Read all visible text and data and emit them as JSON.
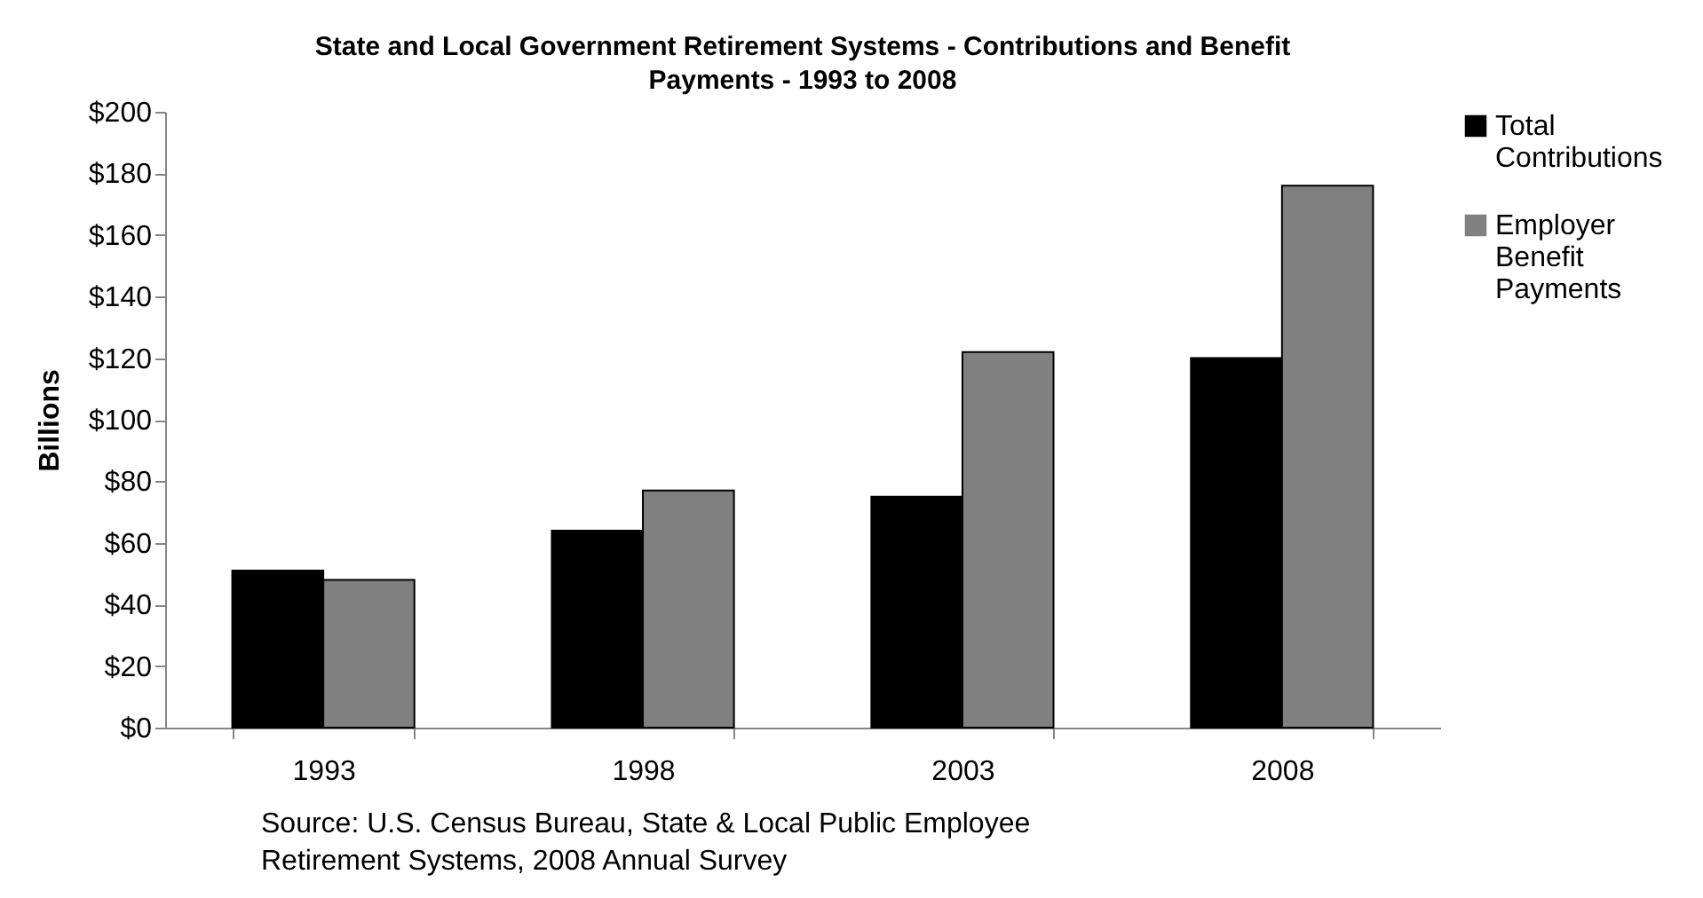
{
  "chart_data": {
    "type": "bar",
    "title": "State and Local Government Retirement Systems - Contributions and Benefit Payments - 1993 to 2008",
    "ylabel": "Billions",
    "categories": [
      "1993",
      "1998",
      "2003",
      "2008"
    ],
    "series": [
      {
        "name": "Total Contributions",
        "color": "#000000",
        "values": [
          51,
          64,
          75,
          120
        ]
      },
      {
        "name": "Employer Benefit Payments",
        "color": "#808080",
        "values": [
          48,
          77,
          122,
          176
        ]
      }
    ],
    "ylim": [
      0,
      200
    ],
    "yticks": [
      {
        "value": 0,
        "label": "$0"
      },
      {
        "value": 20,
        "label": "$20"
      },
      {
        "value": 40,
        "label": "$40"
      },
      {
        "value": 60,
        "label": "$60"
      },
      {
        "value": 80,
        "label": "$80"
      },
      {
        "value": 100,
        "label": "$100"
      },
      {
        "value": 120,
        "label": "$120"
      },
      {
        "value": 140,
        "label": "$140"
      },
      {
        "value": 160,
        "label": "$160"
      },
      {
        "value": 180,
        "label": "$180"
      },
      {
        "value": 200,
        "label": "$200"
      }
    ],
    "grid": false,
    "legend": "right",
    "annotations": [
      "Source: U.S. Census Bureau, State & Local Public Employee Retirement Systems, 2008 Annual Survey"
    ]
  }
}
